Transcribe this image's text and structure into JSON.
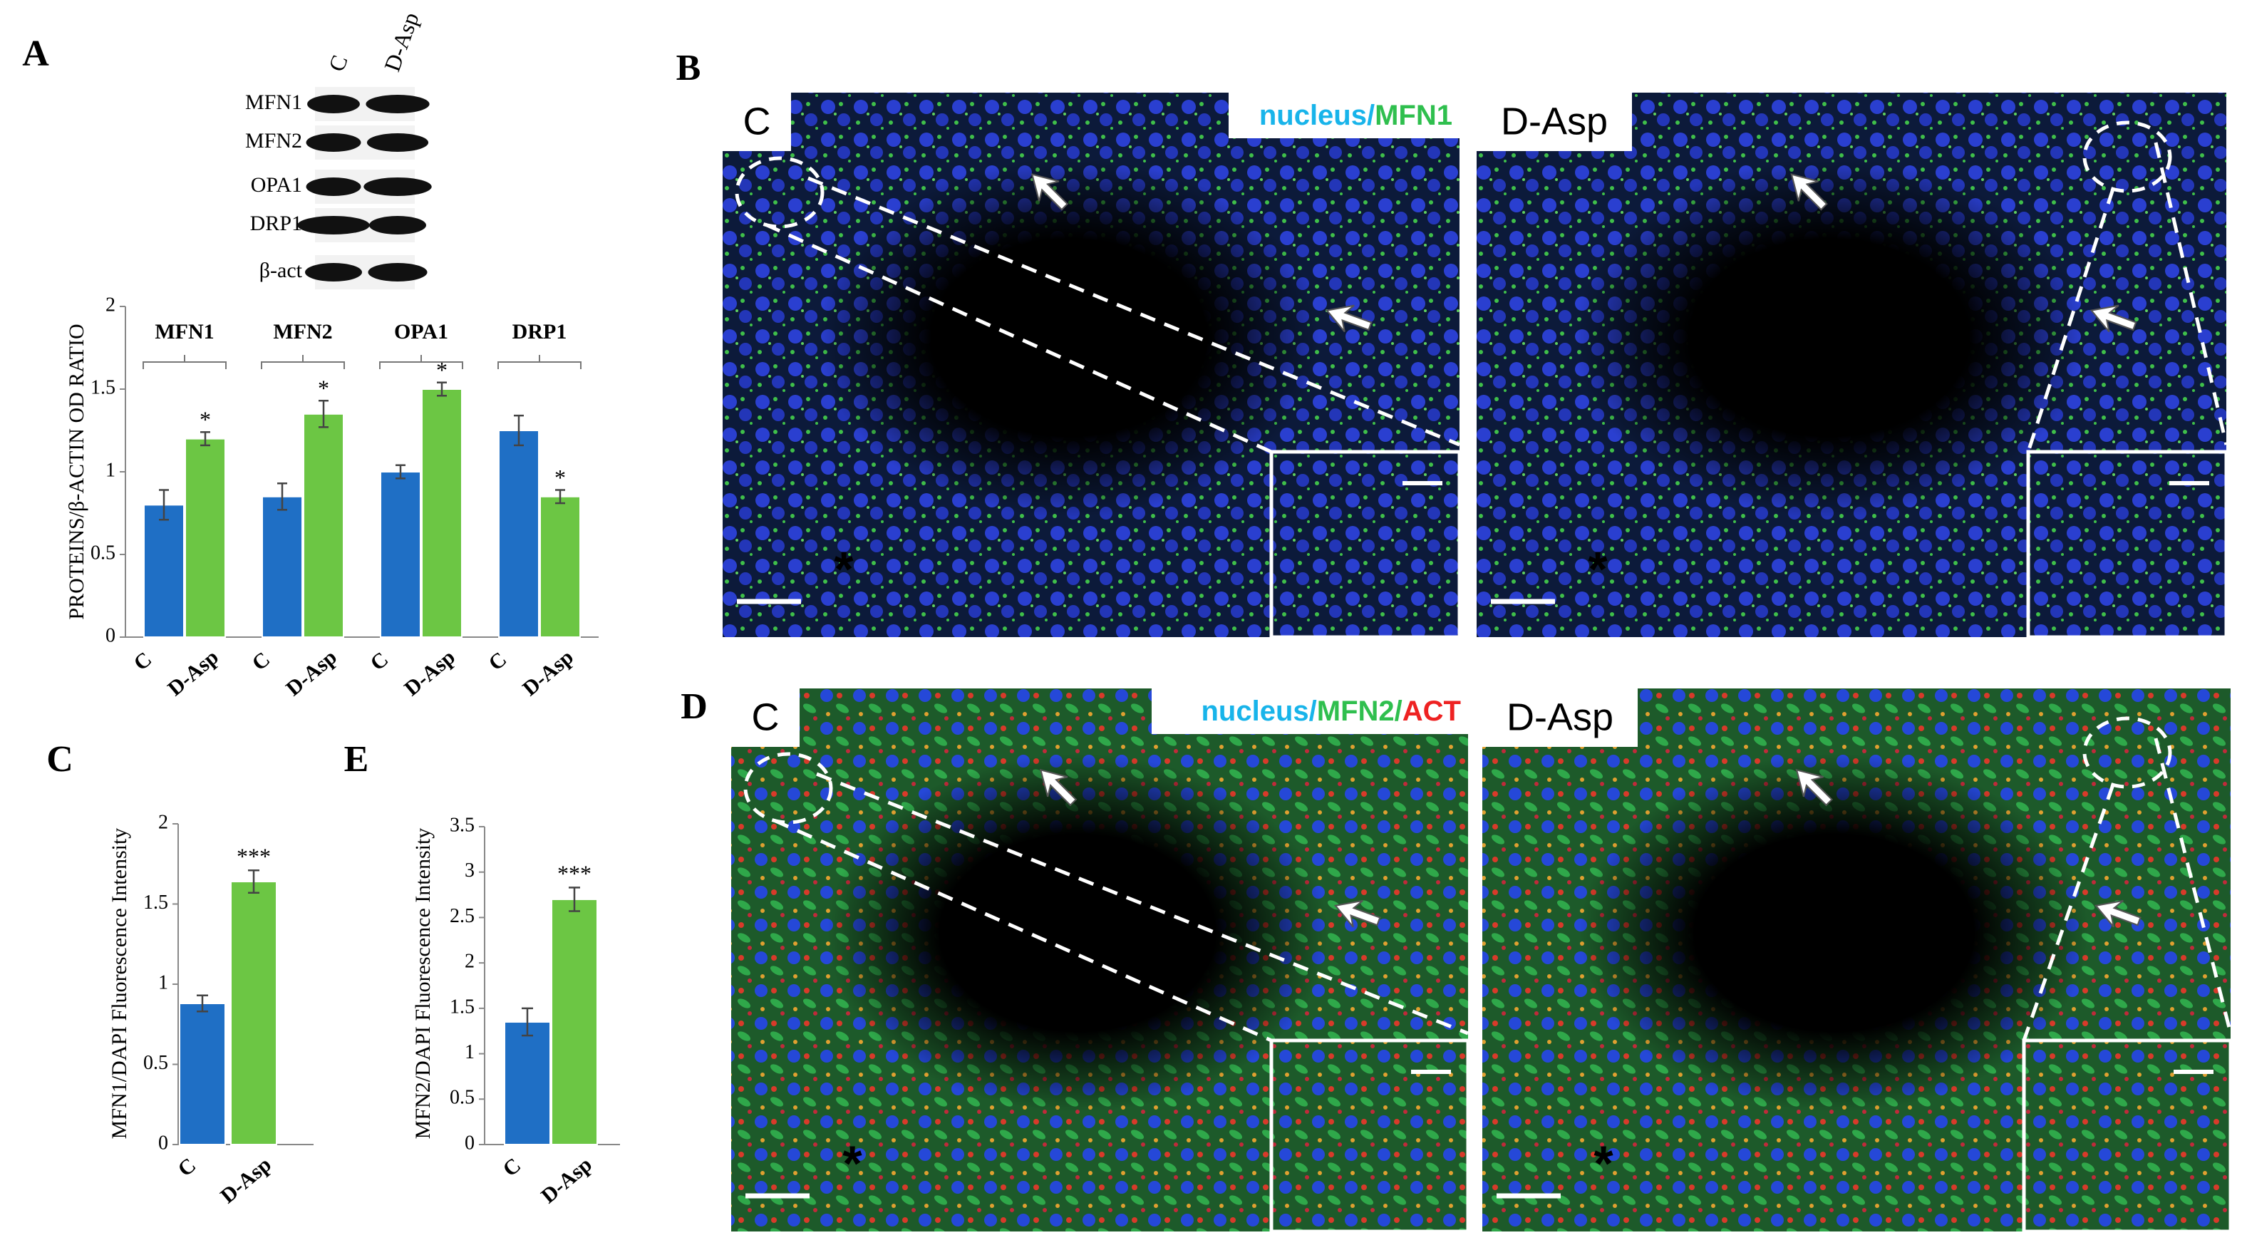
{
  "panel_letters": [
    "A",
    "B",
    "C",
    "D",
    "E"
  ],
  "blot": {
    "lanes": [
      "C",
      "D-Asp"
    ],
    "proteins": [
      "MFN1",
      "MFN2",
      "OPA1",
      "DRP1",
      "β-act"
    ]
  },
  "chart_data": [
    {
      "type": "bar",
      "ylabel": "PROTEINS/β-ACTIN OD RATIO",
      "categories": [
        "MFN1",
        "MFN2",
        "OPA1",
        "DRP1"
      ],
      "series": [
        {
          "name": "C",
          "color": "#1f6fc5",
          "values": [
            0.8,
            0.85,
            1.0,
            1.25
          ],
          "errors": [
            0.09,
            0.08,
            0.04,
            0.09
          ]
        },
        {
          "name": "D-Asp",
          "color": "#6cc644",
          "values": [
            1.2,
            1.35,
            1.5,
            0.85
          ],
          "errors": [
            0.04,
            0.08,
            0.04,
            0.04
          ],
          "significance": [
            "*",
            "*",
            "*",
            "*"
          ]
        }
      ],
      "ylim": [
        0,
        2
      ],
      "yticks": [
        0,
        0.5,
        1,
        1.5,
        2
      ]
    },
    {
      "type": "bar",
      "ylabel": "MFN1/DAPI  Fluorescence Intensity",
      "categories": [
        "C",
        "D-Asp"
      ],
      "values": [
        0.88,
        1.64
      ],
      "errors": [
        0.05,
        0.07
      ],
      "colors": [
        "#1f6fc5",
        "#6cc644"
      ],
      "significance": [
        null,
        "***"
      ],
      "ylim": [
        0,
        2
      ],
      "yticks": [
        0,
        0.5,
        1,
        1.5,
        2
      ]
    },
    {
      "type": "bar",
      "ylabel": "MFN2/DAPI  Fluorescence Intensity",
      "categories": [
        "C",
        "D-Asp"
      ],
      "values": [
        1.35,
        2.7
      ],
      "errors": [
        0.15,
        0.13
      ],
      "colors": [
        "#1f6fc5",
        "#6cc644"
      ],
      "significance": [
        null,
        "***"
      ],
      "ylim": [
        0,
        3.5
      ],
      "yticks": [
        0,
        0.5,
        1,
        1.5,
        2,
        2.5,
        3,
        3.5
      ]
    }
  ],
  "micrographs": {
    "B": {
      "labels": [
        "C",
        "D-Asp"
      ],
      "stain": [
        "nucleus",
        "/",
        "MFN1"
      ],
      "stain_colors": [
        "#18b4ea",
        "#18b4ea",
        "#2fbf4e"
      ],
      "annotation": "*"
    },
    "D": {
      "labels": [
        "C",
        "D-Asp"
      ],
      "stain": [
        "nucleus",
        "/",
        "MFN2",
        "/",
        "ACT"
      ],
      "stain_colors": [
        "#18b4ea",
        "#18b4ea",
        "#2fbf4e",
        "#2fbf4e",
        "#ee2222"
      ],
      "annotation": "*"
    }
  }
}
